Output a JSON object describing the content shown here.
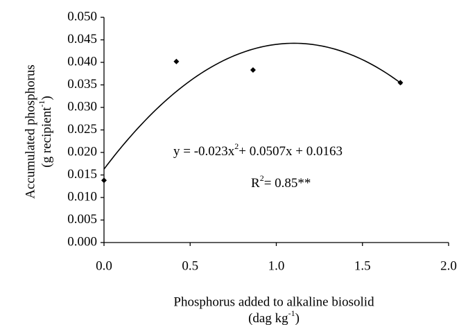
{
  "chart_data": {
    "type": "scatter",
    "x_label": [
      "Phosphorus added to alkaline biosolid",
      "(dag kg",
      "-1",
      ")"
    ],
    "y_label": [
      "Accumulated phosphorus",
      "(g recipient",
      "-1",
      ")"
    ],
    "equation": [
      "y = -0.023x",
      "2",
      "+ 0.0507x + 0.0163"
    ],
    "r_squared": [
      "R",
      "2",
      "= 0.85**"
    ],
    "x": [
      0.0,
      0.42,
      0.865,
      1.72
    ],
    "series": [
      {
        "color": "#000000",
        "values": [
          0.0138,
          0.0402,
          0.0383,
          0.0355
        ]
      }
    ],
    "trendline": {
      "type": "polynomial",
      "coefficients": [
        -0.023,
        0.0507,
        0.0163
      ],
      "x_range": [
        0.0,
        1.73
      ]
    },
    "xlim": [
      0.0,
      2.0
    ],
    "xticks": [
      {
        "value": 0,
        "label": "0.0"
      },
      {
        "value": 0.5,
        "label": "0.5"
      },
      {
        "value": 1,
        "label": "1.0"
      },
      {
        "value": 1.5,
        "label": "1.5"
      },
      {
        "value": 2,
        "label": "2.0"
      }
    ],
    "ylim": [
      0.0,
      0.05
    ],
    "yticks": [
      {
        "value": 0,
        "label": "0.000"
      },
      {
        "value": 0.005,
        "label": "0.005"
      },
      {
        "value": 0.01,
        "label": "0.010"
      },
      {
        "value": 0.015,
        "label": "0.015"
      },
      {
        "value": 0.02,
        "label": "0.020"
      },
      {
        "value": 0.025,
        "label": "0.025"
      },
      {
        "value": 0.03,
        "label": "0.030"
      },
      {
        "value": 0.035,
        "label": "0.035"
      },
      {
        "value": 0.04,
        "label": "0.040"
      },
      {
        "value": 0.045,
        "label": "0.045"
      },
      {
        "value": 0.05,
        "label": "0.050"
      }
    ],
    "grid": false
  }
}
